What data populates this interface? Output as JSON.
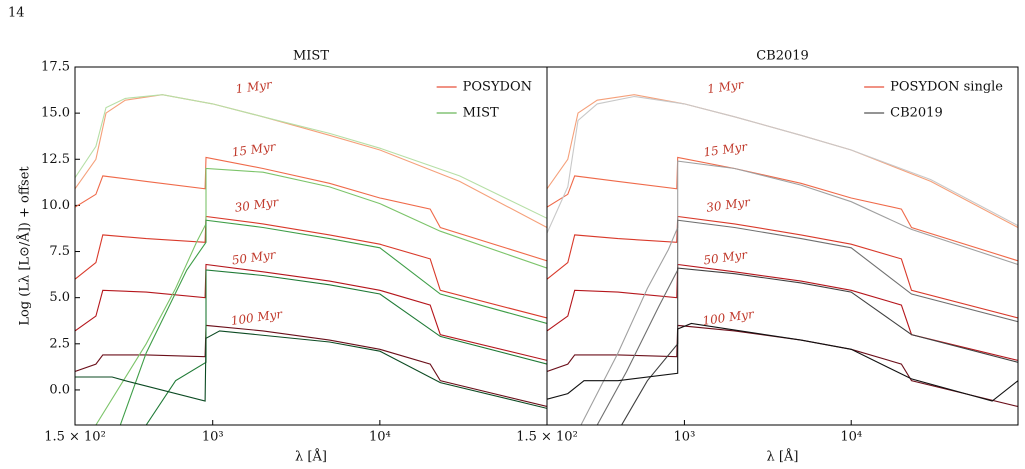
{
  "page_number": "14",
  "chart_data": [
    {
      "type": "line",
      "title": "MIST",
      "xlabel": "λ [Å]",
      "ylabel": "Log (Lλ [L⊙/Å]) + offset",
      "log_x": true,
      "xlim": [
        150,
        100000
      ],
      "ylim": [
        -1.9,
        17.5
      ],
      "xticks": [
        {
          "value": 150,
          "label": "1.5 × 10²"
        },
        {
          "value": 1000,
          "label": "10³"
        },
        {
          "value": 10000,
          "label": "10⁴"
        }
      ],
      "yticks": [
        {
          "value": 0,
          "label": "0.0"
        },
        {
          "value": 2.5,
          "label": "2.5"
        },
        {
          "value": 5,
          "label": "5.0"
        },
        {
          "value": 7.5,
          "label": "7.5"
        },
        {
          "value": 10,
          "label": "10.0"
        },
        {
          "value": 12.5,
          "label": "12.5"
        },
        {
          "value": 15,
          "label": "15.0"
        },
        {
          "value": 17.5,
          "label": "17.5"
        }
      ],
      "legend": "upper right",
      "series": [
        {
          "name": "POSYDON",
          "color": "#e8503a",
          "curves": [
            {
              "color": "#f5a07a",
              "x": [
                150,
                200,
                230,
                300,
                500,
                1000,
                2000,
                5000,
                10000,
                30000,
                100000
              ],
              "values": [
                10.9,
                12.5,
                15.0,
                15.7,
                16.0,
                15.5,
                14.8,
                13.8,
                13.0,
                11.3,
                8.8
              ]
            },
            {
              "color": "#ef6a4a",
              "x": [
                150,
                200,
                220,
                400,
                900,
                912,
                2000,
                5000,
                10000,
                20000,
                23000,
                100000
              ],
              "values": [
                9.9,
                10.6,
                11.6,
                11.3,
                10.9,
                12.6,
                12.0,
                11.2,
                10.4,
                9.8,
                8.8,
                7.0
              ]
            },
            {
              "color": "#d93a2b",
              "x": [
                150,
                200,
                220,
                400,
                900,
                912,
                2000,
                5000,
                10000,
                20000,
                23000,
                100000
              ],
              "values": [
                6.0,
                6.9,
                8.4,
                8.2,
                8.0,
                9.4,
                9.0,
                8.4,
                7.9,
                7.1,
                5.4,
                3.9
              ]
            },
            {
              "color": "#b5161c",
              "x": [
                150,
                200,
                220,
                400,
                900,
                912,
                2000,
                5000,
                10000,
                20000,
                23000,
                100000
              ],
              "values": [
                3.2,
                4.0,
                5.4,
                5.3,
                5.0,
                6.8,
                6.4,
                5.9,
                5.4,
                4.6,
                3.0,
                1.6
              ]
            },
            {
              "color": "#6b0f1a",
              "x": [
                150,
                200,
                220,
                400,
                900,
                912,
                2000,
                5000,
                10000,
                20000,
                23000,
                100000
              ],
              "values": [
                1.0,
                1.4,
                1.9,
                1.9,
                1.8,
                3.5,
                3.2,
                2.7,
                2.2,
                1.4,
                0.5,
                -0.9
              ]
            }
          ]
        },
        {
          "name": "MIST",
          "color": "#6ab65a",
          "curves": [
            {
              "color": "#b6dfa6",
              "x": [
                150,
                200,
                230,
                300,
                500,
                1000,
                2000,
                5000,
                10000,
                30000,
                100000
              ],
              "values": [
                11.5,
                13.2,
                15.3,
                15.8,
                16.0,
                15.5,
                14.8,
                13.9,
                13.1,
                11.6,
                9.3
              ]
            },
            {
              "color": "#7cc46a",
              "x": [
                200,
                400,
                600,
                800,
                912,
                912,
                2000,
                5000,
                10000,
                23000,
                100000
              ],
              "values": [
                -1.9,
                2.5,
                5.5,
                8.0,
                9.0,
                12.0,
                11.8,
                11.0,
                10.1,
                8.6,
                6.6
              ]
            },
            {
              "color": "#3f9e48",
              "x": [
                280,
                400,
                700,
                912,
                912,
                2000,
                5000,
                10000,
                23000,
                100000
              ],
              "values": [
                -1.9,
                2.0,
                6.5,
                8.0,
                9.2,
                8.8,
                8.2,
                7.7,
                5.2,
                3.6
              ]
            },
            {
              "color": "#1f7a36",
              "x": [
                400,
                600,
                912,
                912,
                2000,
                5000,
                10000,
                23000,
                100000
              ],
              "values": [
                -1.9,
                0.5,
                1.5,
                6.5,
                6.2,
                5.7,
                5.2,
                2.9,
                1.4
              ]
            },
            {
              "color": "#0b4a22",
              "x": [
                150,
                250,
                300,
                900,
                912,
                1100,
                5000,
                10000,
                23000,
                100000
              ],
              "values": [
                0.7,
                0.7,
                0.5,
                -0.6,
                2.8,
                3.2,
                2.6,
                2.1,
                0.4,
                -1.0
              ]
            }
          ]
        }
      ],
      "annotations": [
        {
          "text": "1 Myr",
          "x": 1760,
          "y": 16.4
        },
        {
          "text": "15 Myr",
          "x": 1760,
          "y": 13.0
        },
        {
          "text": "30 Myr",
          "x": 1830,
          "y": 10.0
        },
        {
          "text": "50 Myr",
          "x": 1760,
          "y": 7.15
        },
        {
          "text": "100 Myr",
          "x": 1830,
          "y": 3.9
        }
      ]
    },
    {
      "type": "line",
      "title": "CB2019",
      "xlabel": "λ [Å]",
      "log_x": true,
      "xlim": [
        150,
        100000
      ],
      "ylim": [
        -1.9,
        17.5
      ],
      "xticks": [
        {
          "value": 150,
          "label": "1.5 × 10²"
        },
        {
          "value": 1000,
          "label": "10³"
        },
        {
          "value": 10000,
          "label": "10⁴"
        }
      ],
      "legend": "upper right",
      "series": [
        {
          "name": "POSYDON single",
          "color": "#e8503a",
          "curves": [
            {
              "color": "#f5a07a",
              "x": [
                150,
                200,
                230,
                300,
                500,
                1000,
                2000,
                5000,
                10000,
                30000,
                100000
              ],
              "values": [
                10.9,
                12.5,
                15.0,
                15.7,
                16.0,
                15.5,
                14.8,
                13.8,
                13.0,
                11.3,
                8.8
              ]
            },
            {
              "color": "#ef6a4a",
              "x": [
                150,
                200,
                220,
                400,
                900,
                912,
                2000,
                5000,
                10000,
                20000,
                23000,
                100000
              ],
              "values": [
                9.9,
                10.6,
                11.6,
                11.3,
                10.9,
                12.6,
                12.0,
                11.2,
                10.4,
                9.8,
                8.8,
                7.0
              ]
            },
            {
              "color": "#d93a2b",
              "x": [
                150,
                200,
                220,
                400,
                900,
                912,
                2000,
                5000,
                10000,
                20000,
                23000,
                100000
              ],
              "values": [
                6.0,
                6.9,
                8.4,
                8.2,
                8.0,
                9.4,
                9.0,
                8.4,
                7.9,
                7.1,
                5.4,
                3.9
              ]
            },
            {
              "color": "#b5161c",
              "x": [
                150,
                200,
                220,
                400,
                900,
                912,
                2000,
                5000,
                10000,
                20000,
                23000,
                100000
              ],
              "values": [
                3.2,
                4.0,
                5.4,
                5.3,
                5.0,
                6.8,
                6.4,
                5.9,
                5.4,
                4.6,
                3.0,
                1.6
              ]
            },
            {
              "color": "#6b0f1a",
              "x": [
                150,
                200,
                220,
                400,
                900,
                912,
                2000,
                5000,
                10000,
                20000,
                23000,
                100000
              ],
              "values": [
                1.0,
                1.4,
                1.9,
                1.9,
                1.8,
                3.5,
                3.2,
                2.7,
                2.2,
                1.4,
                0.5,
                -0.9
              ]
            }
          ]
        },
        {
          "name": "CB2019",
          "color": "#555555",
          "curves": [
            {
              "color": "#c8c8c8",
              "x": [
                150,
                200,
                230,
                300,
                500,
                1000,
                2000,
                5000,
                10000,
                30000,
                100000
              ],
              "values": [
                8.5,
                11.0,
                14.6,
                15.5,
                15.9,
                15.5,
                14.8,
                13.8,
                13.0,
                11.4,
                8.9
              ]
            },
            {
              "color": "#a0a0a0",
              "x": [
                240,
                400,
                600,
                800,
                912,
                912,
                2000,
                5000,
                10000,
                23000,
                100000
              ],
              "values": [
                -1.9,
                2.0,
                5.5,
                7.6,
                8.8,
                12.4,
                12.0,
                11.1,
                10.2,
                8.7,
                6.8
              ]
            },
            {
              "color": "#707070",
              "x": [
                300,
                450,
                700,
                912,
                912,
                2000,
                5000,
                10000,
                23000,
                100000
              ],
              "values": [
                -1.9,
                1.0,
                4.5,
                6.5,
                9.2,
                8.8,
                8.2,
                7.7,
                5.2,
                3.7
              ]
            },
            {
              "color": "#404040",
              "x": [
                420,
                600,
                912,
                912,
                2000,
                5000,
                10000,
                23000,
                100000
              ],
              "values": [
                -1.9,
                0.5,
                2.5,
                6.6,
                6.3,
                5.8,
                5.3,
                3.0,
                1.5
              ]
            },
            {
              "color": "#111111",
              "x": [
                150,
                200,
                250,
                400,
                912,
                912,
                1100,
                5000,
                10000,
                23000,
                70000,
                100000
              ],
              "values": [
                -0.5,
                -0.2,
                0.5,
                0.5,
                0.9,
                3.3,
                3.6,
                2.7,
                2.2,
                0.6,
                -0.6,
                0.5
              ]
            }
          ]
        }
      ],
      "annotations": [
        {
          "text": "1 Myr",
          "x": 1760,
          "y": 16.4
        },
        {
          "text": "15 Myr",
          "x": 1760,
          "y": 13.0
        },
        {
          "text": "30 Myr",
          "x": 1830,
          "y": 10.0
        },
        {
          "text": "50 Myr",
          "x": 1760,
          "y": 7.15
        },
        {
          "text": "100 Myr",
          "x": 1830,
          "y": 3.9
        }
      ]
    }
  ]
}
